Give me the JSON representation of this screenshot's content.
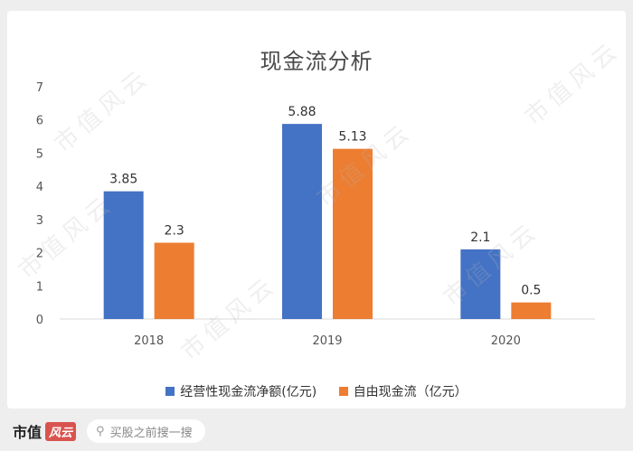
{
  "chart_data": {
    "type": "bar",
    "title": "现金流分析",
    "categories": [
      "2018",
      "2019",
      "2020"
    ],
    "series": [
      {
        "name": "经营性现金流净额(亿元)",
        "color": "#4472c4",
        "values": [
          3.85,
          5.88,
          2.1
        ],
        "labels": [
          "3.85",
          "5.88",
          "2.1"
        ]
      },
      {
        "name": "自由现金流（亿元）",
        "color": "#ed7d31",
        "values": [
          2.3,
          5.13,
          0.5
        ],
        "labels": [
          "2.3",
          "5.13",
          "0.5"
        ]
      }
    ],
    "ylim": [
      0,
      7
    ],
    "yticks": [
      "0",
      "1",
      "2",
      "3",
      "4",
      "5",
      "6",
      "7"
    ],
    "grid": false,
    "legend_position": "bottom"
  },
  "watermark": "市值风云",
  "footer": {
    "brand": "市值",
    "brand_mark": "风云",
    "search_placeholder": "买股之前搜一搜"
  }
}
